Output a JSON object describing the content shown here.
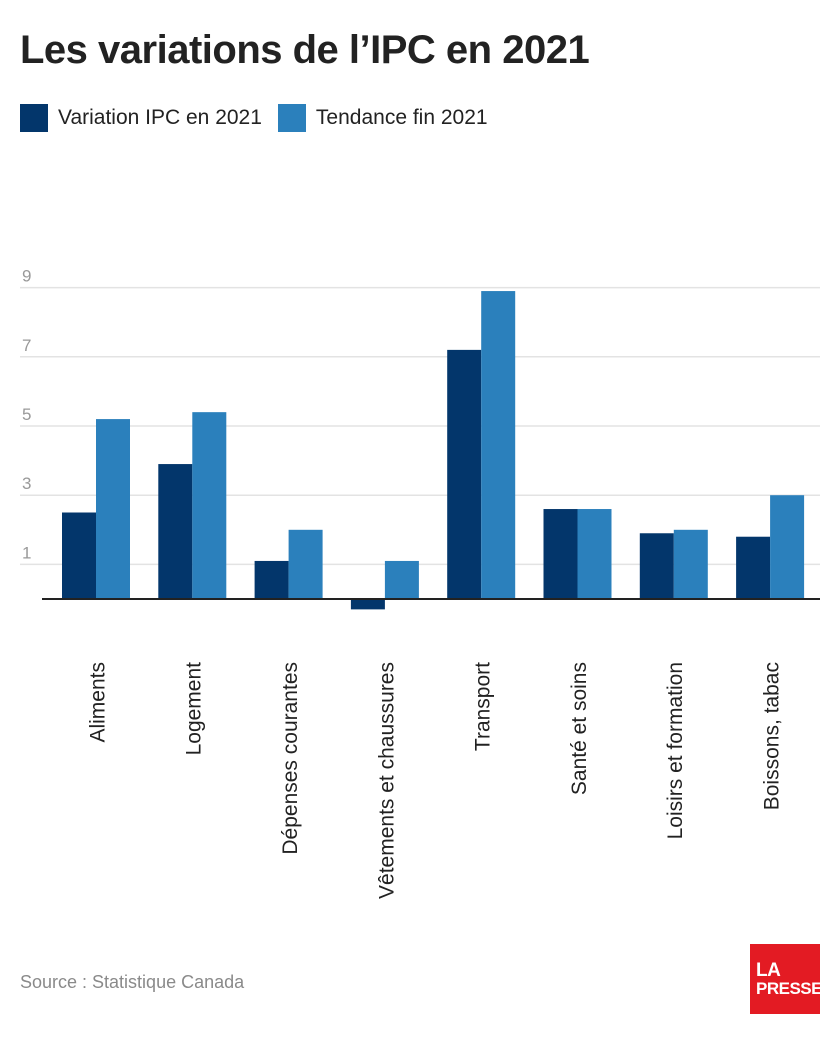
{
  "title": "Les variations de l’IPC en 2021",
  "source": "Source : Statistique Canada",
  "logo": {
    "line1": "LA",
    "line2": "PRESSE"
  },
  "colors": {
    "series1": "#03366b",
    "series2": "#2b80bc",
    "grid": "#e3e3e3",
    "axis": "#222222",
    "logo_bg": "#e31b23"
  },
  "legend": [
    {
      "label": "Variation IPC en 2021",
      "color": "#03366b"
    },
    {
      "label": "Tendance fin 2021",
      "color": "#2b80bc"
    }
  ],
  "chart_data": {
    "type": "bar",
    "title": "Les variations de l’IPC en 2021",
    "categories": [
      "Aliments",
      "Logement",
      "Dépenses courantes",
      "Vêtements et chaussures",
      "Transport",
      "Santé et soins",
      "Loisirs et formation",
      "Boissons, tabac"
    ],
    "series": [
      {
        "name": "Variation IPC en 2021",
        "values": [
          2.5,
          3.9,
          1.1,
          -0.3,
          7.2,
          2.6,
          1.9,
          1.8
        ]
      },
      {
        "name": "Tendance fin 2021",
        "values": [
          5.2,
          5.4,
          2.0,
          1.1,
          8.9,
          2.6,
          2.0,
          3.0
        ]
      }
    ],
    "yticks": [
      1,
      3,
      5,
      7,
      9
    ],
    "ylim": [
      -0.5,
      9
    ],
    "grid": true,
    "legend_position": "top-left"
  }
}
